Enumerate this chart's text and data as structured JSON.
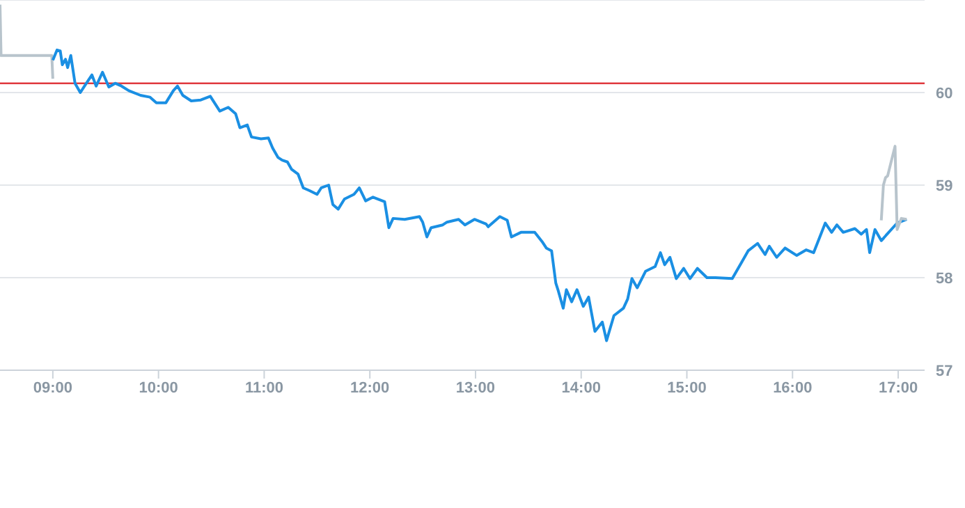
{
  "chart_data": {
    "type": "line",
    "xlim": [
      8.5,
      17.25
    ],
    "xticks": [
      {
        "value": 9,
        "label": "09:00"
      },
      {
        "value": 10,
        "label": "10:00"
      },
      {
        "value": 11,
        "label": "11:00"
      },
      {
        "value": 12,
        "label": "12:00"
      },
      {
        "value": 13,
        "label": "13:00"
      },
      {
        "value": 14,
        "label": "14:00"
      },
      {
        "value": 15,
        "label": "15:00"
      },
      {
        "value": 16,
        "label": "16:00"
      },
      {
        "value": 17,
        "label": "17:00"
      }
    ],
    "ylim": [
      57,
      61
    ],
    "yticks": [
      57,
      58,
      59,
      60,
      {
        "value": 61,
        "label": null
      }
    ],
    "grid": "y",
    "legend": false,
    "marker": "none",
    "line_style": "solid",
    "ref_lines": [
      {
        "axis": "y",
        "value": 60.1,
        "color": "#e0393e"
      }
    ],
    "series": [
      {
        "color": "#b8c4cc",
        "x": [
          8.5,
          8.51,
          8.99,
          9.0
        ],
        "values": [
          60.95,
          60.4,
          60.4,
          60.15
        ]
      },
      {
        "color": "#1a8fe3",
        "x": [
          9.0,
          9.04,
          9.07,
          9.09,
          9.12,
          9.14,
          9.17,
          9.21,
          9.26,
          9.3,
          9.37,
          9.41,
          9.47,
          9.53,
          9.59,
          9.65,
          9.72,
          9.83,
          9.92,
          9.98,
          10.07,
          10.14,
          10.18,
          10.23,
          10.31,
          10.4,
          10.49,
          10.58,
          10.66,
          10.73,
          10.77,
          10.84,
          10.88,
          10.97,
          11.04,
          11.08,
          11.13,
          11.17,
          11.22,
          11.26,
          11.32,
          11.37,
          11.43,
          11.5,
          11.54,
          11.61,
          11.65,
          11.7,
          11.76,
          11.85,
          11.9,
          11.96,
          12.03,
          12.14,
          12.18,
          12.22,
          12.33,
          12.47,
          12.5,
          12.54,
          12.58,
          12.69,
          12.73,
          12.84,
          12.9,
          12.99,
          13.1,
          13.12,
          13.23,
          13.3,
          13.34,
          13.43,
          13.56,
          13.63,
          13.67,
          13.72,
          13.76,
          13.78,
          13.83,
          13.86,
          13.91,
          13.96,
          14.02,
          14.07,
          14.13,
          14.2,
          14.24,
          14.31,
          14.4,
          14.44,
          14.48,
          14.53,
          14.61,
          14.7,
          14.75,
          14.79,
          14.84,
          14.9,
          14.97,
          15.03,
          15.1,
          15.19,
          15.27,
          15.43,
          15.52,
          15.58,
          15.67,
          15.74,
          15.78,
          15.85,
          15.93,
          16.04,
          16.13,
          16.2,
          16.31,
          16.37,
          16.42,
          16.48,
          16.59,
          16.65,
          16.7,
          16.73,
          16.78,
          16.84,
          16.99,
          17.08
        ],
        "values": [
          60.35,
          60.46,
          60.45,
          60.3,
          60.36,
          60.27,
          60.4,
          60.1,
          60.0,
          60.07,
          60.19,
          60.07,
          60.22,
          60.06,
          60.1,
          60.07,
          60.02,
          59.97,
          59.95,
          59.89,
          59.89,
          60.02,
          60.07,
          59.97,
          59.91,
          59.92,
          59.96,
          59.8,
          59.84,
          59.77,
          59.62,
          59.65,
          59.52,
          59.5,
          59.51,
          59.4,
          59.3,
          59.27,
          59.25,
          59.17,
          59.12,
          58.97,
          58.94,
          58.9,
          58.97,
          59.0,
          58.79,
          58.74,
          58.85,
          58.9,
          58.97,
          58.83,
          58.87,
          58.82,
          58.54,
          58.64,
          58.63,
          58.66,
          58.6,
          58.44,
          58.54,
          58.57,
          58.6,
          58.63,
          58.57,
          58.63,
          58.58,
          58.55,
          58.66,
          58.62,
          58.44,
          58.49,
          58.49,
          58.39,
          58.32,
          58.29,
          57.94,
          57.87,
          57.67,
          57.87,
          57.74,
          57.87,
          57.69,
          57.79,
          57.42,
          57.52,
          57.32,
          57.59,
          57.67,
          57.77,
          57.99,
          57.89,
          58.07,
          58.12,
          58.27,
          58.14,
          58.22,
          57.99,
          58.1,
          57.99,
          58.1,
          58.0,
          58.0,
          57.99,
          58.17,
          58.29,
          58.37,
          58.25,
          58.34,
          58.22,
          58.32,
          58.24,
          58.3,
          58.27,
          58.59,
          58.49,
          58.57,
          58.49,
          58.53,
          58.47,
          58.52,
          58.27,
          58.52,
          58.4,
          58.59,
          58.63
        ]
      },
      {
        "color": "#b8c4cc",
        "x": [
          16.84,
          16.86,
          16.88,
          16.9,
          16.97,
          16.99,
          17.03,
          17.08
        ],
        "values": [
          58.62,
          59.0,
          59.08,
          59.1,
          59.42,
          58.52,
          58.64,
          58.63
        ]
      }
    ]
  }
}
